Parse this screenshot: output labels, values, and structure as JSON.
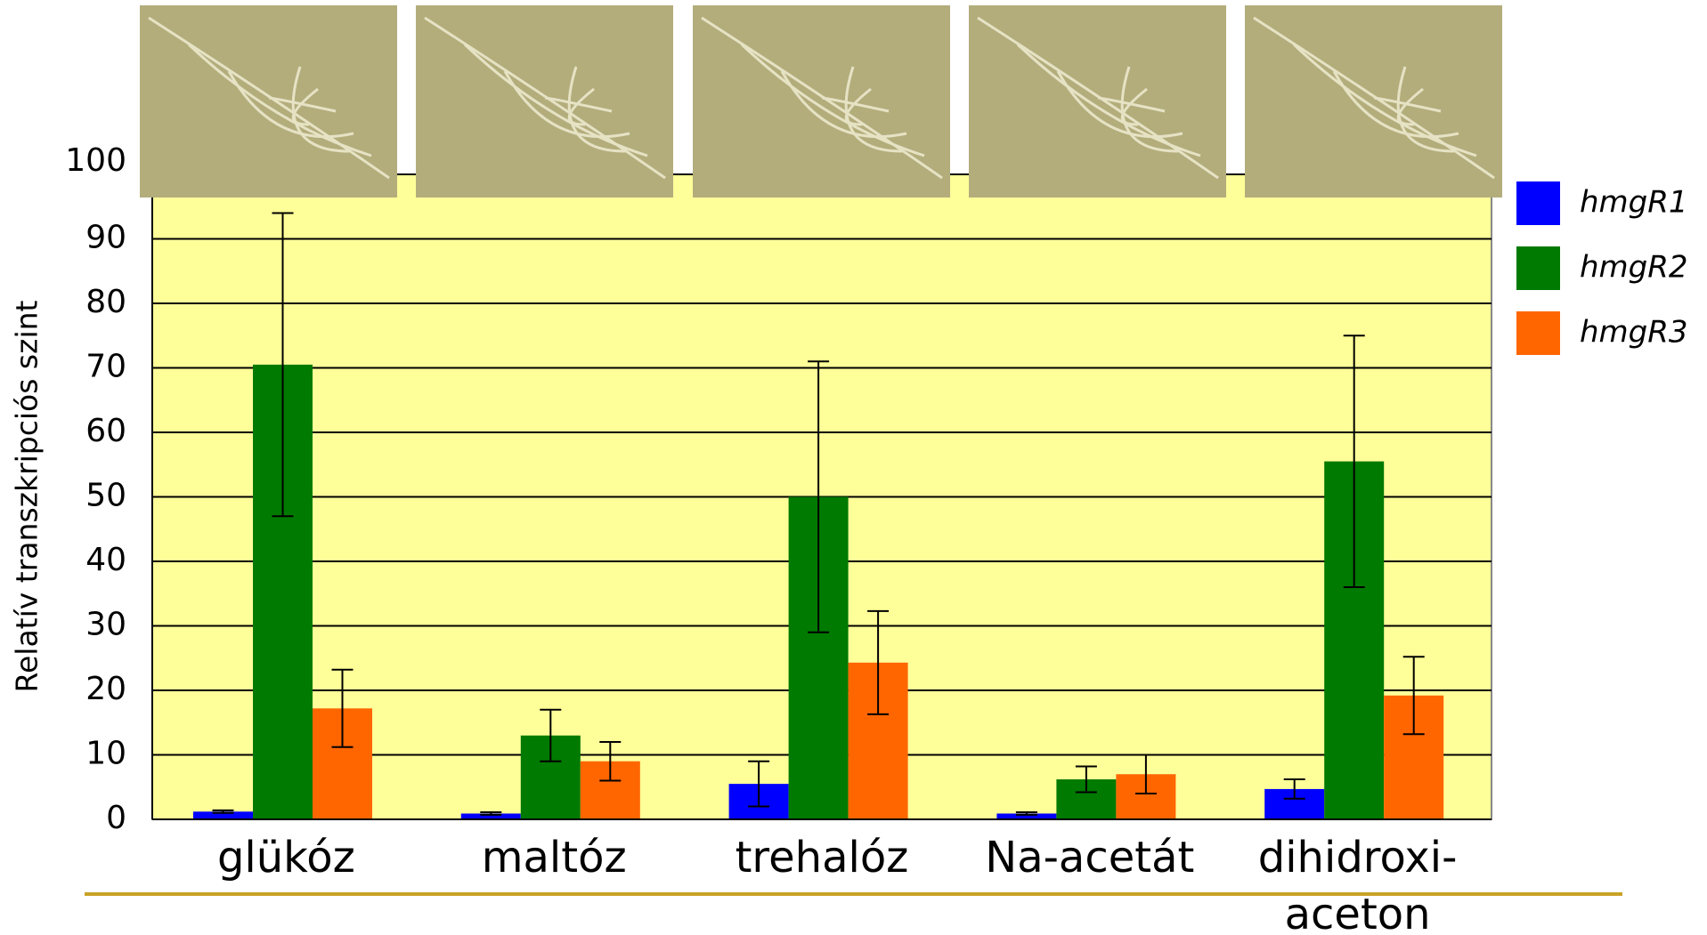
{
  "chart_data": {
    "type": "bar",
    "y_label": "Relatív transzkripciós szint",
    "categories": [
      [
        "glükóz"
      ],
      [
        "maltóz"
      ],
      [
        "trehalóz"
      ],
      [
        "Na-acetát"
      ],
      [
        "dihidroxi-",
        "aceton"
      ]
    ],
    "series": [
      {
        "name": "hmgR1",
        "color": "#0000ff",
        "values": [
          1.2,
          0.9,
          5.5,
          0.9,
          4.7
        ],
        "errors": [
          0.2,
          0.2,
          3.5,
          0.2,
          1.5
        ]
      },
      {
        "name": "hmgR2",
        "color": "#007a00",
        "values": [
          70.5,
          13,
          50,
          6.2,
          55.5
        ],
        "errors": [
          23.5,
          4,
          21,
          2,
          19.5
        ]
      },
      {
        "name": "hmgR3",
        "color": "#ff6600",
        "values": [
          17.2,
          9,
          24.3,
          7,
          19.2
        ],
        "errors": [
          6,
          3,
          8,
          3,
          6
        ]
      }
    ],
    "ylim": [
      0,
      100
    ],
    "yticks": [
      0,
      10,
      20,
      30,
      40,
      50,
      60,
      70,
      80,
      90,
      100
    ],
    "grid": true,
    "legend": "right"
  }
}
